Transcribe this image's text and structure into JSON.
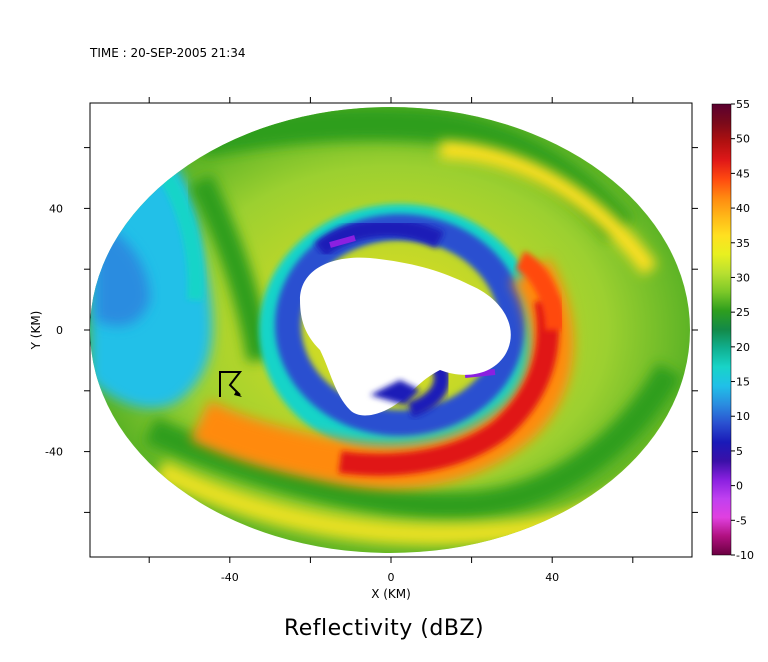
{
  "header": {
    "time_text": "TIME : 20-SEP-2005 21:34"
  },
  "chart_data": {
    "type": "heatmap",
    "title": "Reflectivity (dBZ)",
    "xlabel": "X (KM)",
    "ylabel": "Y (KM)",
    "xlim": [
      -75,
      75
    ],
    "ylim": [
      -75,
      75
    ],
    "x_ticks": [
      -40,
      0,
      40
    ],
    "y_ticks": [
      -40,
      0,
      40
    ],
    "grid": false,
    "colorbar": {
      "label_values": [
        55,
        50,
        45,
        40,
        35,
        30,
        25,
        20,
        15,
        10,
        5,
        0,
        -5,
        -10
      ],
      "min": -10,
      "max": 55,
      "colors": [
        "#5a0030",
        "#7a0a1a",
        "#b01010",
        "#e01818",
        "#ff4a10",
        "#ff8a10",
        "#ffb818",
        "#ffe020",
        "#e8f020",
        "#b8e030",
        "#7cc828",
        "#2e9e1e",
        "#138a48",
        "#10b090",
        "#18d4c8",
        "#20c0e8",
        "#2a8ce0",
        "#2a50d0",
        "#1a1ab8",
        "#3a10a8",
        "#8a20e0",
        "#c040f0",
        "#e040e0",
        "#b01080",
        "#6a0040"
      ]
    },
    "marker": {
      "type": "storm-motion-arrow",
      "x": -42,
      "y": -14
    },
    "field_bands": [
      {
        "name": "eye",
        "dbz": null
      },
      {
        "name": "eyewall-inner",
        "dbz": 10
      },
      {
        "name": "eyewall",
        "dbz": 24
      },
      {
        "name": "primary-rainband",
        "dbz": 46
      },
      {
        "name": "outer-bands",
        "dbz": 34
      },
      {
        "name": "northwest-stratiform",
        "dbz": 22
      }
    ]
  }
}
